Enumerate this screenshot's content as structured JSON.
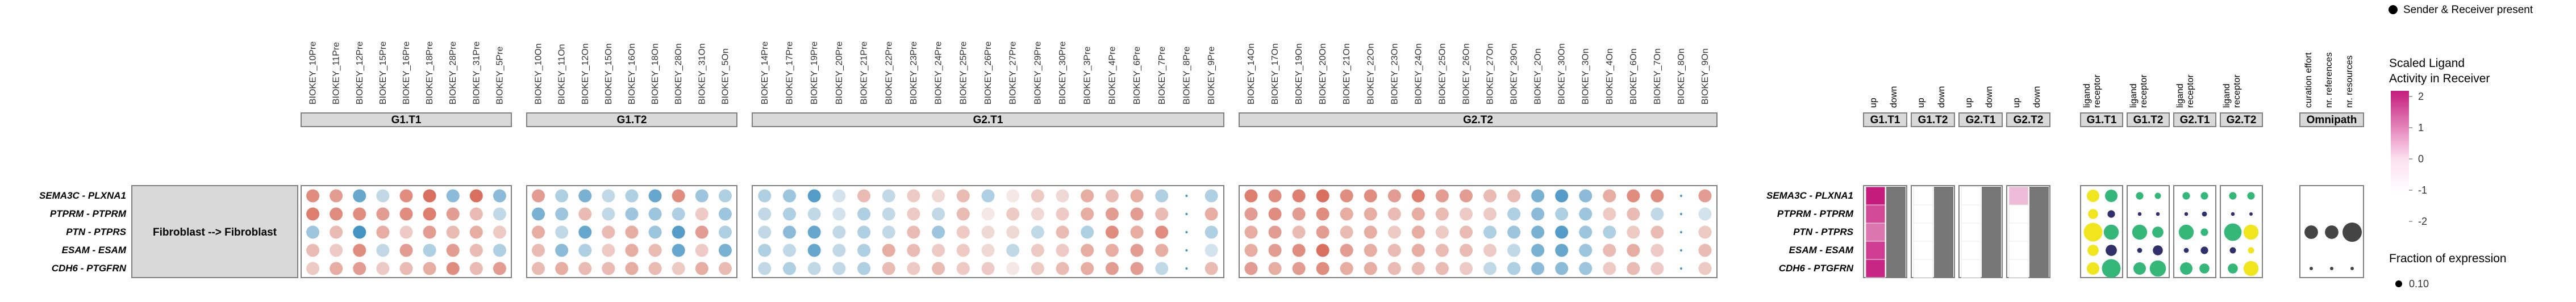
{
  "interaction_label": "Fibroblast --> Fibroblast",
  "pairs": [
    "SEMA3C - PLXNA1",
    "PTPRM - PTPRM",
    "PTN - PTPRS",
    "ESAM - ESAM",
    "CDH6 - PTGFRN"
  ],
  "colors": {
    "dot_red": "#d6604d",
    "dot_blue": "#4393c3",
    "panel_gray": "#7f7f7f",
    "magenta": "#c51b7d",
    "yellow": "#f1e51d",
    "green": "#35b779",
    "navy": "#31306b",
    "strip_bg": "#d9d9d9",
    "missing": "#777777"
  },
  "chart_data": [
    {
      "type": "heatmap",
      "panel": "ligand-receptor expression per sample",
      "groups": [
        {
          "name": "G1.T1",
          "samples": [
            "BIOKEY_10Pre",
            "BIOKEY_11Pre",
            "BIOKEY_12Pre",
            "BIOKEY_15Pre",
            "BIOKEY_16Pre",
            "BIOKEY_18Pre",
            "BIOKEY_28Pre",
            "BIOKEY_31Pre",
            "BIOKEY_5Pre"
          ],
          "values": [
            [
              0.7,
              0.6,
              -0.8,
              -0.3,
              0.7,
              0.9,
              -0.6,
              0.9,
              -0.6
            ],
            [
              0.8,
              0.7,
              0.7,
              0.6,
              0.7,
              0.8,
              0.6,
              0.4,
              -0.3
            ],
            [
              -0.5,
              0.4,
              -1.0,
              0.5,
              0.3,
              0.6,
              0.4,
              0.5,
              0.3
            ],
            [
              0.4,
              0.3,
              0.7,
              -0.3,
              0.6,
              -0.4,
              0.6,
              0.4,
              -0.4
            ],
            [
              0.3,
              0.5,
              0.6,
              0.3,
              0.4,
              0.5,
              0.7,
              0.4,
              0.6
            ]
          ]
        },
        {
          "name": "G1.T2",
          "samples": [
            "BIOKEY_10On",
            "BIOKEY_11On",
            "BIOKEY_12On",
            "BIOKEY_15On",
            "BIOKEY_16On",
            "BIOKEY_18On",
            "BIOKEY_28On",
            "BIOKEY_31On",
            "BIOKEY_5On"
          ],
          "values": [
            [
              0.6,
              -0.4,
              -0.7,
              -0.3,
              -0.4,
              -0.8,
              0.7,
              -0.5,
              -0.4
            ],
            [
              -0.7,
              -0.5,
              0.4,
              -0.3,
              -0.5,
              -0.5,
              -0.4,
              0.3,
              -0.5
            ],
            [
              0.5,
              -0.3,
              -0.8,
              0.4,
              0.5,
              -0.5,
              -0.9,
              0.6,
              -0.4
            ],
            [
              0.4,
              -0.6,
              -0.4,
              0.3,
              0.5,
              0.4,
              -0.8,
              0.3,
              -0.7
            ],
            [
              0.4,
              0.5,
              0.4,
              0.4,
              0.5,
              0.4,
              0.3,
              0.5,
              0.4
            ]
          ]
        },
        {
          "name": "G2.T1",
          "samples": [
            "BIOKEY_14Pre",
            "BIOKEY_17Pre",
            "BIOKEY_19Pre",
            "BIOKEY_20Pre",
            "BIOKEY_21Pre",
            "BIOKEY_22Pre",
            "BIOKEY_23Pre",
            "BIOKEY_24Pre",
            "BIOKEY_25Pre",
            "BIOKEY_26Pre",
            "BIOKEY_27Pre",
            "BIOKEY_29Pre",
            "BIOKEY_30Pre",
            "BIOKEY_3Pre",
            "BIOKEY_4Pre",
            "BIOKEY_6Pre",
            "BIOKEY_7Pre",
            "BIOKEY_8Pre",
            "BIOKEY_9Pre"
          ],
          "values": [
            [
              -0.4,
              -0.5,
              -0.9,
              -0.2,
              0.4,
              -0.3,
              0.3,
              0.2,
              0.4,
              -0.4,
              0.1,
              0.3,
              0.2,
              0.5,
              0.4,
              0.5,
              -0.4,
              null,
              -0.4
            ],
            [
              -0.3,
              -0.4,
              -0.3,
              -0.2,
              -0.4,
              -0.3,
              0.3,
              -0.3,
              0.4,
              0.1,
              0.3,
              0.2,
              0.3,
              0.5,
              0.6,
              0.6,
              0.4,
              null,
              0.5
            ],
            [
              -0.3,
              -0.6,
              -0.8,
              -0.3,
              -0.4,
              -0.3,
              0.4,
              -0.5,
              0.3,
              0.2,
              0.2,
              -0.3,
              0.4,
              -0.4,
              0.7,
              0.5,
              0.7,
              null,
              -0.4
            ],
            [
              -0.4,
              -0.3,
              -0.8,
              -0.3,
              -0.4,
              0.5,
              0.4,
              0.3,
              0.3,
              0.2,
              -0.3,
              0.3,
              0.3,
              0.5,
              0.5,
              0.6,
              0.5,
              null,
              -0.2
            ],
            [
              -0.3,
              -0.4,
              -0.3,
              -0.3,
              -0.4,
              0.4,
              0.3,
              0.4,
              0.3,
              0.3,
              0.1,
              0.3,
              0.4,
              0.5,
              0.6,
              0.6,
              -0.3,
              null,
              0.4
            ]
          ]
        },
        {
          "name": "G2.T2",
          "samples": [
            "BIOKEY_14On",
            "BIOKEY_17On",
            "BIOKEY_19On",
            "BIOKEY_20On",
            "BIOKEY_21On",
            "BIOKEY_22On",
            "BIOKEY_23On",
            "BIOKEY_24On",
            "BIOKEY_25On",
            "BIOKEY_26On",
            "BIOKEY_27On",
            "BIOKEY_29On",
            "BIOKEY_2On",
            "BIOKEY_30On",
            "BIOKEY_3On",
            "BIOKEY_4On",
            "BIOKEY_6On",
            "BIOKEY_7On",
            "BIOKEY_8On",
            "BIOKEY_9On"
          ],
          "values": [
            [
              0.8,
              0.7,
              0.8,
              0.9,
              0.7,
              0.7,
              0.6,
              0.8,
              0.6,
              0.6,
              0.4,
              0.4,
              -0.7,
              -0.9,
              -0.6,
              0.5,
              0.7,
              0.7,
              null,
              0.6
            ],
            [
              0.6,
              0.7,
              0.6,
              0.7,
              0.5,
              0.5,
              0.4,
              0.5,
              0.4,
              0.3,
              0.3,
              -0.4,
              -0.6,
              -0.4,
              -0.5,
              0.3,
              0.4,
              -0.3,
              null,
              -0.2
            ],
            [
              0.5,
              0.6,
              0.4,
              0.6,
              0.4,
              0.5,
              0.3,
              0.5,
              0.3,
              0.4,
              -0.4,
              -0.5,
              -0.7,
              -0.9,
              -0.5,
              -0.4,
              0.3,
              0.4,
              null,
              0.3
            ],
            [
              0.5,
              0.6,
              0.7,
              0.9,
              0.6,
              0.5,
              0.4,
              0.5,
              0.4,
              0.4,
              0.3,
              -0.3,
              -0.7,
              -0.8,
              -0.5,
              0.4,
              0.5,
              0.3,
              null,
              0.4
            ],
            [
              0.6,
              0.5,
              0.6,
              0.7,
              0.5,
              0.5,
              0.4,
              0.4,
              0.4,
              0.3,
              -0.3,
              -0.4,
              -0.6,
              -0.6,
              -0.5,
              0.3,
              0.4,
              0.3,
              null,
              0.3
            ]
          ]
        }
      ]
    },
    {
      "type": "heatmap",
      "panel": "scaled ligand activity in receiver",
      "columns": [
        "up",
        "down"
      ],
      "groups": [
        "G1.T1",
        "G1.T2",
        "G2.T1",
        "G2.T2"
      ],
      "up_values": [
        [
          2.0,
          0.0,
          0.0,
          0.6
        ],
        [
          1.6,
          0.0,
          0.0,
          0.0
        ],
        [
          1.2,
          0.0,
          0.0,
          0.0
        ],
        [
          1.7,
          0.0,
          0.0,
          0.0
        ],
        [
          1.9,
          0.0,
          0.0,
          0.0
        ]
      ],
      "down_values": "missing"
    },
    {
      "type": "scatter",
      "panel": "fraction of expression",
      "columns": [
        "ligand",
        "receptor"
      ],
      "groups": [
        "G1.T1",
        "G1.T2",
        "G2.T1",
        "G2.T2"
      ],
      "values": {
        "G1.T1": [
          [
            0.1,
            0.1
          ],
          [
            0.08,
            0.06
          ],
          [
            0.15,
            0.12
          ],
          [
            0.09,
            0.09
          ],
          [
            0.1,
            0.15
          ]
        ],
        "G1.T2": [
          [
            0.06,
            0.05
          ],
          [
            0.03,
            0.03
          ],
          [
            0.12,
            0.09
          ],
          [
            0.04,
            0.08
          ],
          [
            0.1,
            0.13
          ]
        ],
        "G2.T1": [
          [
            0.06,
            0.06
          ],
          [
            0.03,
            0.04
          ],
          [
            0.12,
            0.06
          ],
          [
            0.04,
            0.06
          ],
          [
            0.1,
            0.08
          ]
        ],
        "G2.T2": [
          [
            0.06,
            0.06
          ],
          [
            0.03,
            0.02
          ],
          [
            0.14,
            0.12
          ],
          [
            0.05,
            0.05
          ],
          [
            0.08,
            0.12
          ]
        ]
      }
    },
    {
      "type": "scatter",
      "panel": "Omnipath",
      "columns": [
        "curation effort",
        "nr. references",
        "nr. resources"
      ],
      "values": [
        [
          null,
          null,
          null
        ],
        [
          null,
          null,
          null
        ],
        [
          0.7,
          0.7,
          1.0
        ],
        [
          null,
          null,
          null
        ],
        [
          0.1,
          0.1,
          0.1
        ]
      ]
    }
  ],
  "legend": {
    "sender_receiver": "Sender & Receiver present",
    "activity_title_1": "Scaled Ligand",
    "activity_title_2": "Activity in Receiver",
    "activity_ticks": [
      "2",
      "1",
      "0",
      "-1",
      "-2"
    ],
    "fraction_title": "Fraction of expression",
    "fraction_tick": "0.10"
  }
}
